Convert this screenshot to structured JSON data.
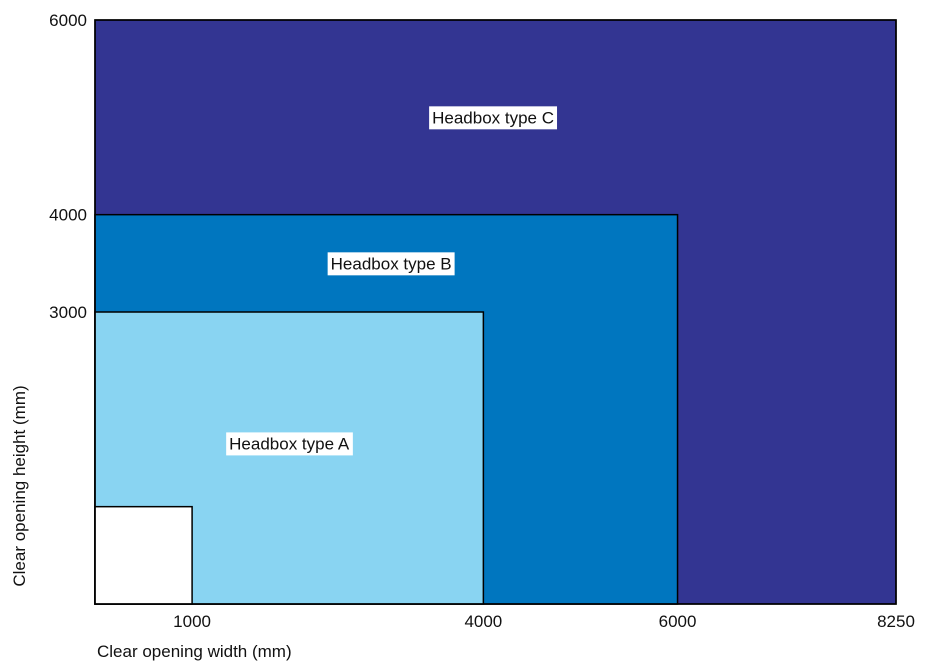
{
  "chart_data": {
    "type": "area",
    "xlabel": "Clear opening width (mm)",
    "ylabel": "Clear opening height (mm)",
    "xlim": [
      0,
      8250
    ],
    "ylim": [
      0,
      6000
    ],
    "x_ticks": [
      1000,
      4000,
      6000,
      8250
    ],
    "y_ticks": [
      3000,
      4000,
      6000
    ],
    "regions": [
      {
        "name": "Headbox type C",
        "max_width": 8250,
        "max_height": 6000,
        "color": "#333592",
        "label_at": [
          4100,
          5000
        ]
      },
      {
        "name": "Headbox type B",
        "max_width": 6000,
        "max_height": 4000,
        "color": "#0076BF",
        "label_at": [
          3050,
          3500
        ]
      },
      {
        "name": "Headbox type A",
        "max_width": 4000,
        "max_height": 3000,
        "color": "#89D4F2",
        "label_at": [
          2000,
          1650
        ]
      }
    ],
    "excluded_region": {
      "max_width": 1000,
      "max_height": 1000,
      "color": "#FFFFFF"
    }
  }
}
